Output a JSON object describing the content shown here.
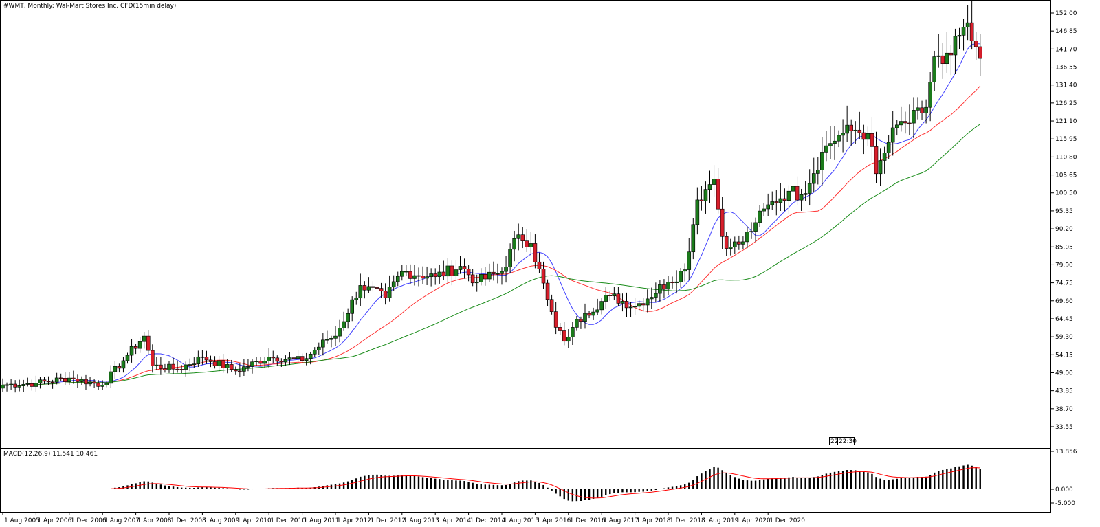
{
  "header": {
    "title": "#WMT, Monthly:  Wal-Mart Stores Inc. CFD(15min delay)"
  },
  "macd_header": {
    "label": "MACD(12,26,9) 11.541 10.461"
  },
  "badge": {
    "left": "22",
    "right": "22:30"
  },
  "colors": {
    "bull": "#1b7a1b",
    "bear": "#d81e2b",
    "ma_fast": "#3f3fff",
    "ma_mid": "#ff3030",
    "ma_slow": "#1a8c1a",
    "macd_bar": "#000000",
    "macd_signal": "#ff0000",
    "grid": "#000000",
    "axis": "#000000"
  },
  "chart_data": [
    {
      "type": "candlestick",
      "title": "#WMT, Monthly:  Wal-Mart Stores Inc. CFD(15min delay)",
      "interval": "Monthly",
      "ylim": [
        30.0,
        154.0
      ],
      "y_ticks": [
        "152.00",
        "146.85",
        "141.70",
        "136.55",
        "131.40",
        "126.25",
        "121.10",
        "115.95",
        "110.80",
        "105.65",
        "100.50",
        "95.35",
        "90.20",
        "85.05",
        "79.90",
        "74.75",
        "69.60",
        "64.45",
        "59.30",
        "54.15",
        "49.00",
        "43.85",
        "38.70",
        "33.55"
      ],
      "x_ticks": [
        "1 Aug 2005",
        "1 Apr 2006",
        "1 Dec 2006",
        "1 Aug 2007",
        "1 Apr 2008",
        "1 Dec 2008",
        "1 Aug 2009",
        "1 Apr 2010",
        "1 Dec 2010",
        "1 Aug 2011",
        "1 Apr 2012",
        "1 Dec 2012",
        "1 Aug 2013",
        "1 Apr 2014",
        "1 Dec 2014",
        "1 Aug 2015",
        "1 Apr 2016",
        "1 Dec 2016",
        "1 Aug 2017",
        "1 Apr 2018",
        "1 Dec 2018",
        "1 Aug 2019",
        "1 Apr 2020",
        "1 Dec 2020"
      ],
      "close_anchors": [
        [
          0,
          45.5
        ],
        [
          8,
          46.0
        ],
        [
          16,
          47.5
        ],
        [
          24,
          45.5
        ],
        [
          30,
          54.0
        ],
        [
          34,
          59.5
        ],
        [
          36,
          51.0
        ],
        [
          42,
          50.0
        ],
        [
          48,
          53.5
        ],
        [
          56,
          49.5
        ],
        [
          64,
          53.5
        ],
        [
          72,
          52.5
        ],
        [
          78,
          58.5
        ],
        [
          80,
          59.5
        ],
        [
          86,
          74.0
        ],
        [
          92,
          70.5
        ],
        [
          96,
          78.0
        ],
        [
          104,
          76.5
        ],
        [
          110,
          79.5
        ],
        [
          114,
          75.0
        ],
        [
          120,
          78.0
        ],
        [
          124,
          88.5
        ],
        [
          127,
          86.0
        ],
        [
          131,
          70.0
        ],
        [
          133,
          62.0
        ],
        [
          135,
          58.0
        ],
        [
          137,
          62.0
        ],
        [
          140,
          66.0
        ],
        [
          146,
          71.0
        ],
        [
          152,
          68.0
        ],
        [
          160,
          75.0
        ],
        [
          164,
          78.5
        ],
        [
          167,
          98.5
        ],
        [
          169,
          101.5
        ],
        [
          171,
          104.5
        ],
        [
          173,
          88.0
        ],
        [
          175,
          85.0
        ],
        [
          178,
          86.5
        ],
        [
          181,
          92.0
        ],
        [
          185,
          98.0
        ],
        [
          189,
          101.0
        ],
        [
          192,
          100.0
        ],
        [
          198,
          114.0
        ],
        [
          201,
          117.0
        ],
        [
          205,
          118.5
        ],
        [
          208,
          117.5
        ],
        [
          210,
          106.0
        ],
        [
          213,
          115.0
        ],
        [
          216,
          121.0
        ],
        [
          218,
          120.5
        ],
        [
          222,
          125.0
        ],
        [
          224,
          139.5
        ],
        [
          226,
          137.5
        ],
        [
          228,
          140.0
        ],
        [
          231,
          148.0
        ],
        [
          233,
          144.0
        ],
        [
          235,
          139.0
        ]
      ],
      "moving_averages": [
        {
          "name": "",
          "period": 10,
          "color": "#3f3fff"
        },
        {
          "name": "",
          "period": 25,
          "color": "#ff3030"
        },
        {
          "name": "",
          "period": 50,
          "color": "#1a8c1a"
        }
      ],
      "last_bar_date": "1 Feb 2021",
      "grid": false
    },
    {
      "type": "macd",
      "label": "MACD(12,26,9) 11.541 10.461",
      "params": [
        12,
        26,
        9
      ],
      "macd": 11.541,
      "signal": 10.461,
      "ylim": [
        -5.0,
        14.5
      ],
      "y_ticks": [
        "13.856",
        "0.000",
        "-5.000"
      ],
      "x_ticks": [
        "1 Aug 2005",
        "1 Apr 2006",
        "1 Dec 2006",
        "1 Aug 2007",
        "1 Apr 2008",
        "1 Dec 2008",
        "1 Aug 2009",
        "1 Apr 2010",
        "1 Dec 2010",
        "1 Aug 2011",
        "1 Apr 2012",
        "1 Dec 2012",
        "1 Aug 2013",
        "1 Apr 2014",
        "1 Dec 2014",
        "1 Aug 2015",
        "1 Apr 2016",
        "1 Dec 2016",
        "1 Aug 2017",
        "1 Apr 2018",
        "1 Dec 2018",
        "1 Aug 2019",
        "1 Apr 2020",
        "1 Dec 2020"
      ]
    }
  ]
}
